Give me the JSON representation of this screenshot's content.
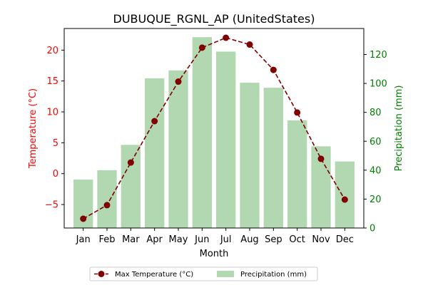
{
  "chart_data": {
    "type": "bar",
    "title": "DUBUQUE_RGNL_AP (UnitedStates)",
    "xlabel": "Month",
    "categories": [
      "Jan",
      "Feb",
      "Mar",
      "Apr",
      "May",
      "Jun",
      "Jul",
      "Aug",
      "Sep",
      "Oct",
      "Nov",
      "Dec"
    ],
    "left_axis": {
      "label": "Temperature (°C)",
      "ylim": [
        -8.8,
        23.5
      ],
      "ticks": [
        -5,
        0,
        5,
        10,
        15,
        20
      ],
      "color": "#ff0000"
    },
    "right_axis": {
      "label": "Precipitation (mm)",
      "ylim": [
        0,
        138
      ],
      "ticks": [
        0,
        20,
        40,
        60,
        80,
        100,
        120
      ],
      "color": "#008000"
    },
    "series": [
      {
        "name": "Max Temperature (°C)",
        "type": "line",
        "axis": "left",
        "color": "#800000",
        "values": [
          -7.3,
          -5.1,
          1.8,
          8.5,
          14.9,
          20.4,
          22.0,
          20.9,
          16.8,
          9.9,
          2.4,
          -4.2
        ]
      },
      {
        "name": "Precipitation (mm)",
        "type": "bar",
        "axis": "right",
        "color": "#b2d8b2",
        "values": [
          33.5,
          40.0,
          57.5,
          103.5,
          109.0,
          132.0,
          122.0,
          100.5,
          97.0,
          74.5,
          56.5,
          46.0
        ]
      }
    ],
    "grid": false,
    "legend_position": "bottom-center"
  }
}
